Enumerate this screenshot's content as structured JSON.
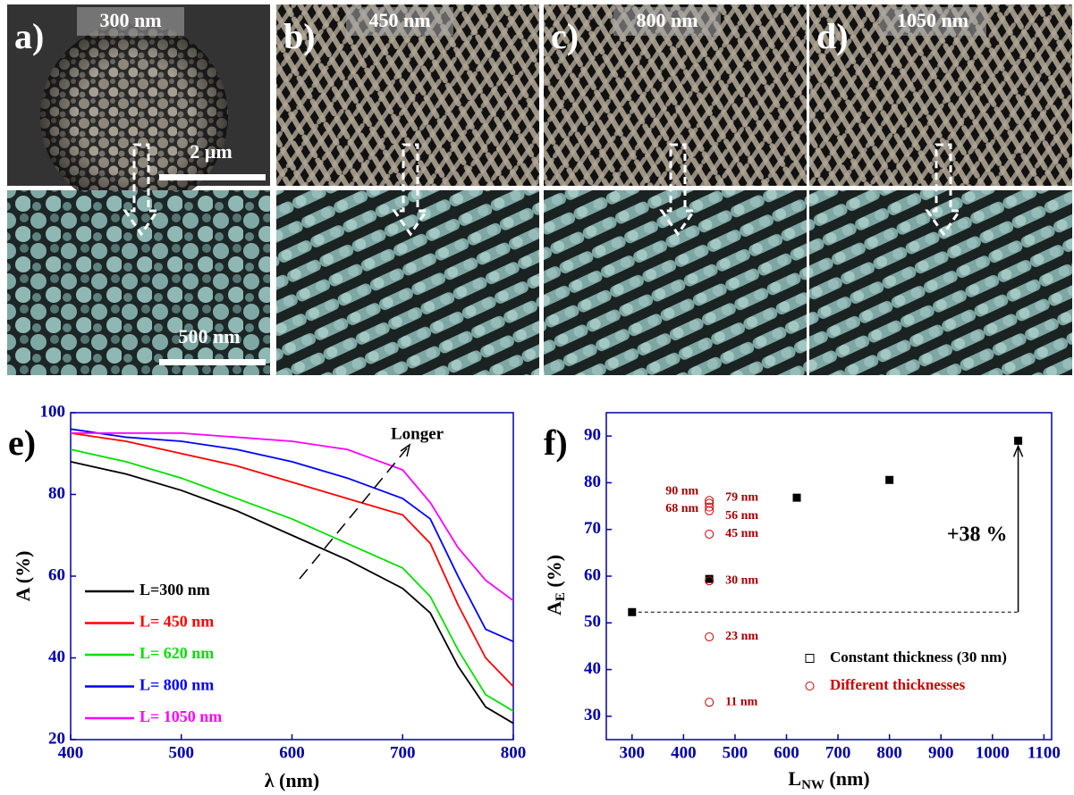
{
  "panels": [
    {
      "label": "a)",
      "length": "300 nm"
    },
    {
      "label": "b)",
      "length": "450 nm"
    },
    {
      "label": "c)",
      "length": "800 nm"
    },
    {
      "label": "d)",
      "length": "1050 nm"
    }
  ],
  "scale_bars": [
    "2 μm",
    "500 nm"
  ],
  "chart_data": [
    {
      "type": "line",
      "label": "e)",
      "x_label": "λ (nm)",
      "y_label": "A (%)",
      "annotation": "Longer",
      "x": [
        400,
        450,
        500,
        550,
        600,
        650,
        700,
        725,
        750,
        775,
        800
      ],
      "xlim": [
        400,
        800
      ],
      "xticks": [
        400,
        500,
        600,
        700,
        800
      ],
      "ylim": [
        20,
        100
      ],
      "yticks": [
        20,
        40,
        60,
        80,
        100
      ],
      "legend": "lower left",
      "series": [
        {
          "name": "L=300 nm",
          "color": "#000000",
          "values": [
            88,
            85,
            81,
            76,
            70,
            64,
            57,
            51,
            38,
            28,
            24
          ]
        },
        {
          "name": "L= 450 nm",
          "color": "#ff0000",
          "values": [
            95,
            93,
            90,
            87,
            83,
            79,
            75,
            68,
            53,
            40,
            33
          ]
        },
        {
          "name": "L= 620 nm",
          "color": "#00e000",
          "values": [
            91,
            88,
            84,
            79,
            74,
            68,
            62,
            55,
            42,
            31,
            27
          ]
        },
        {
          "name": "L= 800 nm",
          "color": "#0000ff",
          "values": [
            96,
            94,
            93,
            91,
            88,
            84,
            79,
            74,
            60,
            47,
            44
          ]
        },
        {
          "name": "L= 1050 nm",
          "color": "#ff00ff",
          "values": [
            95,
            95,
            95,
            94,
            93,
            91,
            86,
            78,
            67,
            59,
            54
          ]
        }
      ]
    },
    {
      "type": "scatter",
      "label": "f)",
      "x_label": [
        "L",
        "NW",
        " (nm)"
      ],
      "y_label": [
        "A",
        "E",
        " (%)"
      ],
      "annotation": "+38 %",
      "xlim": [
        250,
        1115
      ],
      "xticks": [
        300,
        400,
        500,
        600,
        700,
        800,
        900,
        1000,
        1100
      ],
      "ylim": [
        25,
        95
      ],
      "yticks": [
        30,
        40,
        50,
        60,
        70,
        80,
        90
      ],
      "legend": "lower right",
      "series": [
        {
          "name": "Constant thickness (30 nm)",
          "color": "#000000",
          "marker": "square",
          "x": [
            300,
            450,
            620,
            800,
            1050
          ],
          "values": [
            52.3,
            59.4,
            76.8,
            80.6,
            89
          ]
        },
        {
          "name": "Different thicknesses",
          "color": "#cc0000",
          "marker": "circle",
          "x": [
            450,
            450,
            450,
            450,
            450,
            450,
            450,
            450
          ],
          "values": [
            33,
            47,
            59,
            69,
            74,
            74.8,
            75.6,
            76.2
          ],
          "point_labels": [
            "11 nm",
            "23 nm",
            "30 nm",
            "45 nm",
            "56 nm",
            "68 nm",
            "79 nm",
            "90 nm"
          ]
        }
      ]
    }
  ]
}
